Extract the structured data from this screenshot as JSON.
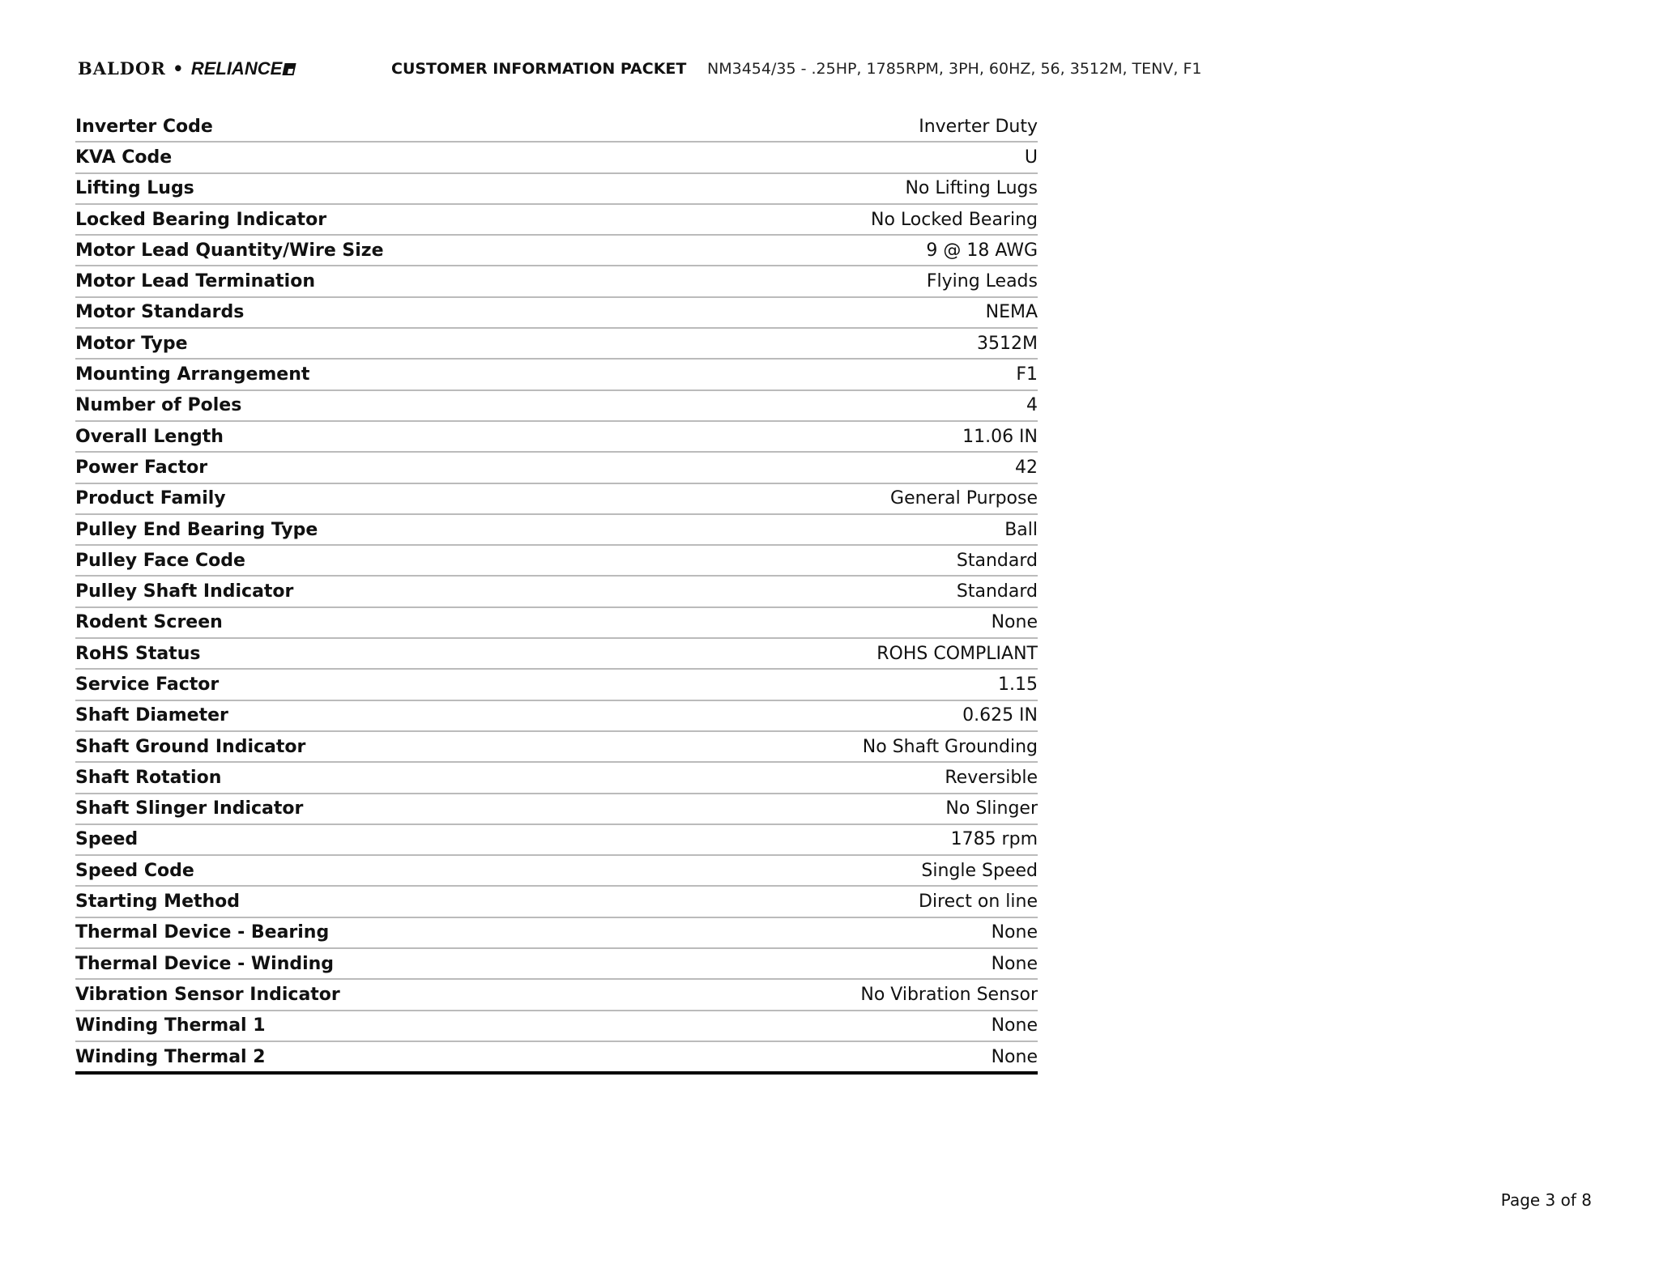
{
  "header": {
    "logo_text": "BALDOR • RELIANCE",
    "title": "CUSTOMER INFORMATION PACKET",
    "model": "NM3454/35 - .25HP, 1785RPM, 3PH, 60HZ, 56, 3512M, TENV, F1"
  },
  "specs": [
    {
      "label": "Inverter Code",
      "value": "Inverter Duty"
    },
    {
      "label": "KVA Code",
      "value": "U"
    },
    {
      "label": "Lifting Lugs",
      "value": "No Lifting Lugs"
    },
    {
      "label": "Locked Bearing Indicator",
      "value": "No Locked Bearing"
    },
    {
      "label": "Motor Lead Quantity/Wire Size",
      "value": "9 @ 18 AWG"
    },
    {
      "label": "Motor Lead Termination",
      "value": "Flying Leads"
    },
    {
      "label": "Motor Standards",
      "value": "NEMA"
    },
    {
      "label": "Motor Type",
      "value": "3512M"
    },
    {
      "label": "Mounting Arrangement",
      "value": "F1"
    },
    {
      "label": "Number of Poles",
      "value": "4"
    },
    {
      "label": "Overall Length",
      "value": "11.06 IN"
    },
    {
      "label": "Power Factor",
      "value": "42"
    },
    {
      "label": "Product Family",
      "value": "General Purpose"
    },
    {
      "label": "Pulley End Bearing Type",
      "value": "Ball"
    },
    {
      "label": "Pulley Face Code",
      "value": "Standard"
    },
    {
      "label": "Pulley Shaft Indicator",
      "value": "Standard"
    },
    {
      "label": "Rodent Screen",
      "value": "None"
    },
    {
      "label": "RoHS Status",
      "value": "ROHS COMPLIANT"
    },
    {
      "label": "Service Factor",
      "value": "1.15"
    },
    {
      "label": "Shaft Diameter",
      "value": "0.625 IN"
    },
    {
      "label": "Shaft Ground Indicator",
      "value": "No Shaft Grounding"
    },
    {
      "label": "Shaft Rotation",
      "value": "Reversible"
    },
    {
      "label": "Shaft Slinger Indicator",
      "value": "No Slinger"
    },
    {
      "label": "Speed",
      "value": "1785 rpm"
    },
    {
      "label": "Speed Code",
      "value": "Single Speed"
    },
    {
      "label": "Starting Method",
      "value": "Direct on line"
    },
    {
      "label": "Thermal Device - Bearing",
      "value": "None"
    },
    {
      "label": "Thermal Device - Winding",
      "value": "None"
    },
    {
      "label": "Vibration Sensor Indicator",
      "value": "No Vibration Sensor"
    },
    {
      "label": "Winding Thermal 1",
      "value": "None"
    },
    {
      "label": "Winding Thermal 2",
      "value": "None"
    }
  ],
  "footer": {
    "page": "Page 3 of 8"
  }
}
